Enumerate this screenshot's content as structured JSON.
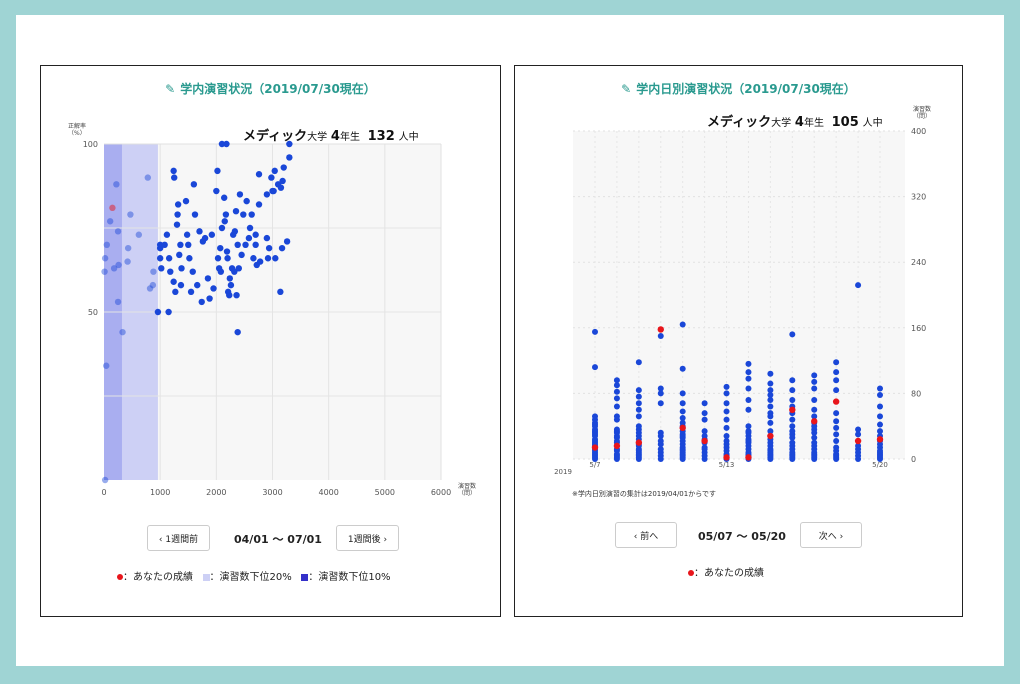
{
  "left_panel": {
    "title": "学内演習状況（2019/07/30現在）",
    "header": {
      "school": "メディック",
      "daigaku": "大学",
      "grade": "4",
      "nensei": "年生",
      "count": "132",
      "ninchu": "人中"
    },
    "prev_label": "‹ 1週間前",
    "next_label": "1週間後 ›",
    "range_label": "04/01 〜 07/01",
    "legend": {
      "you": "：あなたの成績",
      "low20": "：演習数下位20%",
      "low10": "：演習数下位10%"
    }
  },
  "right_panel": {
    "title": "学内日別演習状況（2019/07/30現在）",
    "header": {
      "school": "メディック",
      "daigaku": "大学",
      "grade": "4",
      "nensei": "年生",
      "count": "105",
      "ninchu": "人中"
    },
    "note": "※学内日別演習の集計は2019/04/01からです",
    "prev_label": "‹ 前へ",
    "next_label": "次へ ›",
    "range_label": "05/07 〜 05/20",
    "legend": {
      "you": "：あなたの成績"
    }
  },
  "colors": {
    "dot": "#1a47d8",
    "you": "#e8151b",
    "low20": "#cdd0f5",
    "low10": "#a9aef0",
    "title": "#2a9a8f"
  },
  "chart_data": [
    {
      "type": "scatter",
      "title": "学内演習状況（2019/07/30現在）",
      "xlabel": "演習数（問）",
      "ylabel": "正解率（%）",
      "xlim": [
        0,
        6000
      ],
      "ylim": [
        0,
        100
      ],
      "xticks": [
        0,
        1000,
        2000,
        3000,
        4000,
        5000,
        6000
      ],
      "yticks": [
        50,
        100
      ],
      "bands": {
        "low10_max": 320,
        "low20_max": 960
      },
      "grid": true,
      "you": {
        "x": 150,
        "y": 81
      },
      "points": [
        [
          10,
          62
        ],
        [
          20,
          0
        ],
        [
          20,
          66
        ],
        [
          40,
          34
        ],
        [
          50,
          70
        ],
        [
          110,
          77
        ],
        [
          220,
          88
        ],
        [
          250,
          74
        ],
        [
          260,
          64
        ],
        [
          180,
          63
        ],
        [
          250,
          53
        ],
        [
          330,
          44
        ],
        [
          420,
          65
        ],
        [
          430,
          69
        ],
        [
          470,
          79
        ],
        [
          620,
          73
        ],
        [
          780,
          90
        ],
        [
          820,
          57
        ],
        [
          870,
          58
        ],
        [
          880,
          62
        ],
        [
          960,
          50
        ],
        [
          1000,
          66
        ],
        [
          1000,
          69
        ],
        [
          1020,
          63
        ],
        [
          1000,
          70
        ],
        [
          1080,
          70
        ],
        [
          1120,
          73
        ],
        [
          1150,
          50
        ],
        [
          1180,
          62
        ],
        [
          1160,
          66
        ],
        [
          1240,
          92
        ],
        [
          1250,
          90
        ],
        [
          1240,
          59
        ],
        [
          1270,
          56
        ],
        [
          1300,
          76
        ],
        [
          1310,
          79
        ],
        [
          1320,
          82
        ],
        [
          1340,
          67
        ],
        [
          1360,
          70
        ],
        [
          1380,
          63
        ],
        [
          1370,
          58
        ],
        [
          1460,
          83
        ],
        [
          1480,
          73
        ],
        [
          1500,
          70
        ],
        [
          1520,
          66
        ],
        [
          1550,
          56
        ],
        [
          1580,
          62
        ],
        [
          1600,
          88
        ],
        [
          1620,
          79
        ],
        [
          1660,
          58
        ],
        [
          1700,
          74
        ],
        [
          1740,
          53
        ],
        [
          1760,
          71
        ],
        [
          1800,
          72
        ],
        [
          1850,
          60
        ],
        [
          1880,
          54
        ],
        [
          1920,
          73
        ],
        [
          1950,
          57
        ],
        [
          2020,
          92
        ],
        [
          2000,
          86
        ],
        [
          2030,
          66
        ],
        [
          2050,
          63
        ],
        [
          2070,
          69
        ],
        [
          2080,
          62
        ],
        [
          2100,
          100
        ],
        [
          2100,
          75
        ],
        [
          2140,
          84
        ],
        [
          2150,
          77
        ],
        [
          2170,
          79
        ],
        [
          2180,
          100
        ],
        [
          2190,
          68
        ],
        [
          2200,
          66
        ],
        [
          2210,
          56
        ],
        [
          2230,
          55
        ],
        [
          2240,
          60
        ],
        [
          2260,
          58
        ],
        [
          2280,
          63
        ],
        [
          2300,
          73
        ],
        [
          2320,
          62
        ],
        [
          2330,
          74
        ],
        [
          2350,
          80
        ],
        [
          2360,
          55
        ],
        [
          2380,
          70
        ],
        [
          2380,
          44
        ],
        [
          2400,
          63
        ],
        [
          2420,
          85
        ],
        [
          2450,
          67
        ],
        [
          2480,
          79
        ],
        [
          2520,
          70
        ],
        [
          2540,
          83
        ],
        [
          2580,
          72
        ],
        [
          2600,
          75
        ],
        [
          2630,
          79
        ],
        [
          2660,
          66
        ],
        [
          2700,
          70
        ],
        [
          2700,
          73
        ],
        [
          2720,
          64
        ],
        [
          2760,
          82
        ],
        [
          2760,
          91
        ],
        [
          2780,
          65
        ],
        [
          2900,
          85
        ],
        [
          2900,
          72
        ],
        [
          2920,
          66
        ],
        [
          2940,
          69
        ],
        [
          2980,
          90
        ],
        [
          3000,
          86
        ],
        [
          3020,
          86
        ],
        [
          3040,
          92
        ],
        [
          3050,
          66
        ],
        [
          3100,
          88
        ],
        [
          3140,
          56
        ],
        [
          3150,
          87
        ],
        [
          3170,
          69
        ],
        [
          3180,
          89
        ],
        [
          3200,
          93
        ],
        [
          3260,
          71
        ],
        [
          3300,
          100
        ],
        [
          3300,
          96
        ]
      ]
    },
    {
      "type": "scatter",
      "title": "学内日別演習状況（2019/07/30現在）",
      "xlabel": "",
      "ylabel": "演習数（問）",
      "ylim": [
        0,
        400
      ],
      "yticks": [
        0,
        80,
        160,
        240,
        320,
        400
      ],
      "x_year": "2019",
      "categories": [
        "5/7",
        "5/8",
        "5/9",
        "5/10",
        "5/11",
        "5/12",
        "5/13",
        "5/14",
        "5/15",
        "5/16",
        "5/17",
        "5/18",
        "5/19",
        "5/20"
      ],
      "x_tick_labels": {
        "0": "5/7",
        "6": "5/13",
        "13": "5/20"
      },
      "grid": true,
      "you": [
        [
          0,
          14
        ],
        [
          1,
          16
        ],
        [
          2,
          20
        ],
        [
          3,
          158
        ],
        [
          4,
          38
        ],
        [
          5,
          22
        ],
        [
          6,
          2
        ],
        [
          7,
          2
        ],
        [
          8,
          28
        ],
        [
          9,
          60
        ],
        [
          10,
          46
        ],
        [
          11,
          70
        ],
        [
          12,
          22
        ],
        [
          13,
          24
        ]
      ],
      "points": [
        [
          0,
          [
            0,
            2,
            4,
            6,
            8,
            10,
            12,
            16,
            18,
            20,
            22,
            24,
            28,
            30,
            32,
            34,
            36,
            40,
            42,
            44,
            48,
            52,
            112,
            155
          ]
        ],
        [
          1,
          [
            0,
            2,
            4,
            6,
            10,
            12,
            16,
            20,
            22,
            26,
            28,
            32,
            34,
            36,
            48,
            52,
            64,
            74,
            82,
            90,
            96
          ]
        ],
        [
          2,
          [
            0,
            2,
            4,
            6,
            8,
            10,
            12,
            16,
            18,
            24,
            28,
            32,
            36,
            40,
            52,
            60,
            68,
            76,
            84,
            118
          ]
        ],
        [
          3,
          [
            0,
            4,
            8,
            12,
            18,
            22,
            28,
            32,
            68,
            80,
            86,
            150
          ]
        ],
        [
          4,
          [
            0,
            2,
            4,
            6,
            8,
            10,
            12,
            14,
            18,
            22,
            26,
            28,
            30,
            34,
            38,
            40,
            44,
            50,
            58,
            68,
            80,
            110,
            164
          ]
        ],
        [
          5,
          [
            0,
            4,
            8,
            12,
            14,
            20,
            22,
            24,
            28,
            34,
            48,
            56,
            68
          ]
        ],
        [
          6,
          [
            0,
            2,
            4,
            6,
            10,
            14,
            18,
            22,
            28,
            38,
            48,
            58,
            68,
            80,
            88
          ]
        ],
        [
          7,
          [
            0,
            2,
            4,
            6,
            8,
            12,
            16,
            20,
            22,
            24,
            28,
            32,
            34,
            40,
            60,
            72,
            86,
            98,
            106,
            116
          ]
        ],
        [
          8,
          [
            0,
            2,
            4,
            6,
            8,
            10,
            12,
            16,
            20,
            24,
            28,
            34,
            44,
            52,
            56,
            64,
            72,
            78,
            84,
            92,
            104
          ]
        ],
        [
          9,
          [
            0,
            2,
            4,
            6,
            8,
            12,
            16,
            20,
            26,
            30,
            34,
            40,
            48,
            56,
            64,
            72,
            84,
            96,
            152
          ]
        ],
        [
          10,
          [
            0,
            2,
            4,
            6,
            8,
            12,
            16,
            20,
            26,
            32,
            36,
            40,
            44,
            52,
            60,
            72,
            86,
            94,
            102
          ]
        ],
        [
          11,
          [
            0,
            2,
            4,
            6,
            10,
            14,
            22,
            30,
            38,
            46,
            56,
            84,
            96,
            106,
            118
          ]
        ],
        [
          12,
          [
            0,
            4,
            8,
            12,
            16,
            22,
            30,
            36,
            212
          ]
        ],
        [
          13,
          [
            0,
            2,
            4,
            6,
            8,
            10,
            14,
            18,
            22,
            28,
            34,
            42,
            52,
            64,
            78,
            86
          ]
        ]
      ]
    }
  ]
}
